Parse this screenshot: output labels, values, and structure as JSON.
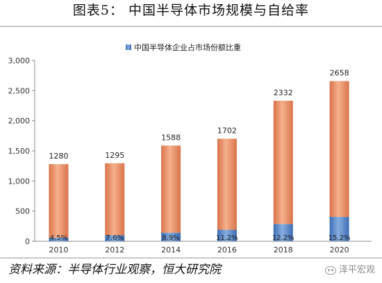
{
  "title": "图表5： 中国半导体市场规模与自给率",
  "source": "资料来源：半导体行业观察，恒大研究院",
  "watermark": "泽平宏观",
  "chart_data": {
    "type": "bar",
    "stacked": true,
    "categories": [
      "2010",
      "2012",
      "2014",
      "2016",
      "2018",
      "2020"
    ],
    "series": [
      {
        "name": "中国半导体企业占市场份额比重",
        "share_labels": [
          "4.5%",
          "7.6%",
          "8.9%",
          "11.2%",
          "12.2%",
          "15.2%"
        ],
        "share_values": [
          4.5,
          7.6,
          8.9,
          11.2,
          12.2,
          15.2
        ],
        "color": "#4f7fc4"
      },
      {
        "name": "",
        "color": "#e9936b"
      }
    ],
    "total_values": [
      1280,
      1295,
      1588,
      1702,
      2332,
      2658
    ],
    "total_labels": [
      "1280",
      "1295",
      "1588",
      "1702",
      "2332",
      "2658"
    ],
    "yticks": [
      "0",
      "500",
      "1,000",
      "1,500",
      "2,000",
      "2,500",
      "3,000"
    ],
    "ylim": [
      0,
      3000
    ],
    "legend_position": "top-center",
    "grid": false,
    "xlabel": "",
    "ylabel": ""
  }
}
